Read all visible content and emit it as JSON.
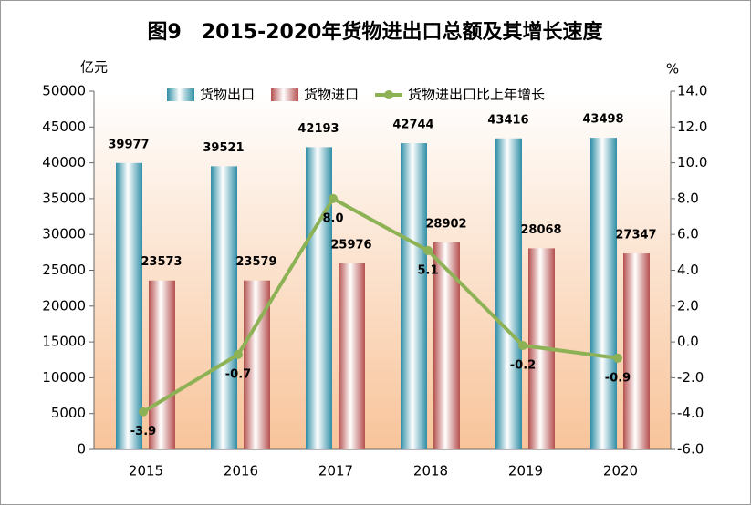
{
  "chart_data": {
    "type": "bar_line",
    "title": "图9　2015-2020年货物进出口总额及其增长速度",
    "y_label": "亿元",
    "y2_label": "%",
    "categories": [
      "2015",
      "2016",
      "2017",
      "2018",
      "2019",
      "2020"
    ],
    "series": [
      {
        "name": "货物出口",
        "type": "bar",
        "color": "#2f8ea6",
        "values": [
          39977,
          39521,
          42193,
          42744,
          43416,
          43498
        ]
      },
      {
        "name": "货物进口",
        "type": "bar",
        "color": "#b4504e",
        "values": [
          23573,
          23579,
          25976,
          28902,
          28068,
          27347
        ]
      },
      {
        "name": "货物进出口比上年增长",
        "type": "line",
        "axis": "y2",
        "color": "#8db255",
        "values": [
          -3.9,
          -0.7,
          8.0,
          5.1,
          -0.2,
          -0.9
        ],
        "value_labels": [
          "-3.9",
          "-0.7",
          "8.0",
          "5.1",
          "-0.2",
          "-0.9"
        ]
      }
    ],
    "ylim": [
      0,
      50000
    ],
    "yticks": [
      0,
      5000,
      10000,
      15000,
      20000,
      25000,
      30000,
      35000,
      40000,
      45000,
      50000
    ],
    "y2lim": [
      -6,
      14
    ],
    "y2ticks": [
      {
        "value": -6,
        "label": "-6.0"
      },
      {
        "value": -4,
        "label": "-4.0"
      },
      {
        "value": -2,
        "label": "-2.0"
      },
      {
        "value": 0,
        "label": "0.0"
      },
      {
        "value": 2,
        "label": "2.0"
      },
      {
        "value": 4,
        "label": "4.0"
      },
      {
        "value": 6,
        "label": "6.0"
      },
      {
        "value": 8,
        "label": "8.0"
      },
      {
        "value": 10,
        "label": "10.0"
      },
      {
        "value": 12,
        "label": "12.0"
      },
      {
        "value": 14,
        "label": "14.0"
      }
    ],
    "legend": "top"
  }
}
